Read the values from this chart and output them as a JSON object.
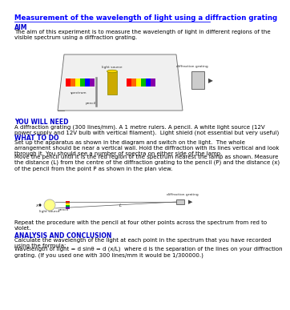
{
  "title": "Measurement of the wavelength of light using a diffraction grating",
  "aim_heading": "AIM",
  "aim_text": "The aim of this experiment is to measure the wavelength of light in different regions of the\nvisible spectrum using a diffraction grating.",
  "you_will_need_heading": "YOU WILL NEED",
  "you_will_need_text": "A diffraction grating (300 lines/mm). A 1 metre rulers. A pencil. A white light source (12V\npower supply and 12V bulb with vertical filament).  Light shield (not essential but very useful)",
  "what_to_do_heading": "WHAT TO DO",
  "what_to_do_text1": "Set up the apparatus as shown in the diagram and switch on the light.  The whole\narrangement should be near a vertical wall. Hold the diffraction with its lines vertical and look\nthrough it. You should see a number of spectra on either side of the lamp.",
  "what_to_do_text2": "Move the pencil until it is the red region of the spectrum nearest the lamp as shown. Measure\nthe distance (L) from the centre of the diffraction grating to the pencil (P) and the distance (x)\nof the pencil from the point P as shown in the plan view.",
  "repeat_text": "Repeat the procedure with the pencil at four other points across the spectrum from red to\nviolet.",
  "analysis_heading": "ANALYSIS AND CONCLUSION",
  "analysis_text1": "Calculate the wavelength of the light at each point in the spectrum that you have recorded\nusing the formula:",
  "analysis_text2": "Wavelength of light = d sinθ = d (x/L)  where d is the separation of the lines on your diffraction\ngrating. (If you used one with 300 lines/mm it would be 1/300000.)",
  "bg_color": "#ffffff",
  "heading_color": "#0000FF",
  "subheading_color": "#0000CC",
  "text_color": "#000000",
  "body_fontsize": 5.5,
  "heading_fontsize": 6.2
}
